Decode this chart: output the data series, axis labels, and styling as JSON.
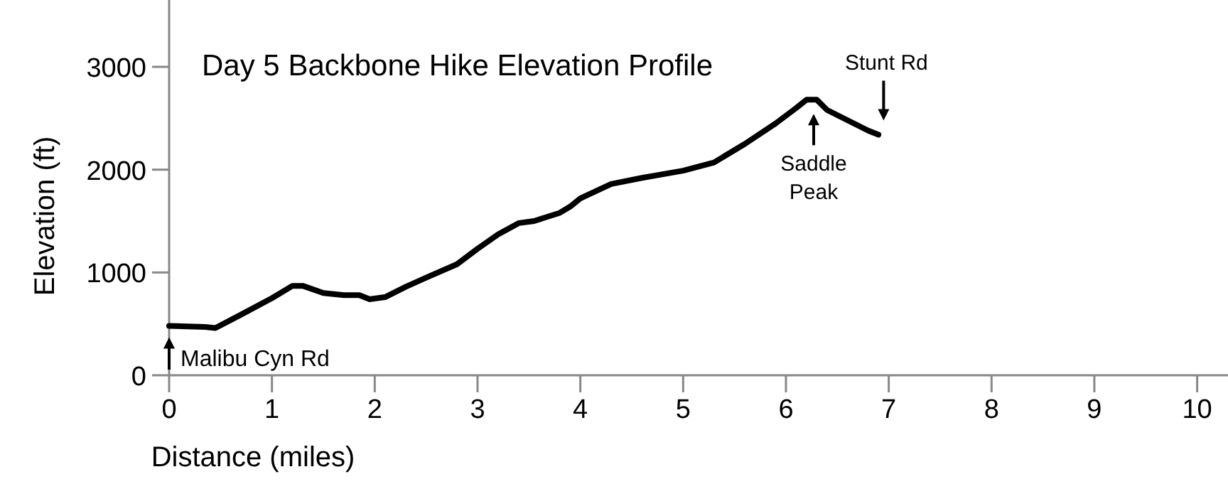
{
  "chart_data": {
    "type": "line",
    "title": "Day 5 Backbone Hike Elevation Profile",
    "xlabel": "Distance (miles)",
    "ylabel": "Elevation (ft)",
    "xlim": [
      0,
      10.3
    ],
    "ylim": [
      0,
      3650
    ],
    "xticks": [
      0,
      1,
      2,
      3,
      4,
      5,
      6,
      7,
      8,
      9,
      10
    ],
    "yticks": [
      0,
      1000,
      2000,
      3000
    ],
    "grid": false,
    "marker": "none",
    "line_style": "solid",
    "series": [
      {
        "color": "#000000",
        "x": [
          0,
          0.35,
          0.45,
          0.7,
          1.0,
          1.2,
          1.3,
          1.5,
          1.7,
          1.85,
          1.95,
          2.1,
          2.3,
          2.5,
          2.8,
          3.0,
          3.2,
          3.4,
          3.55,
          3.8,
          3.9,
          4.0,
          4.3,
          4.6,
          5.0,
          5.3,
          5.6,
          5.9,
          6.1,
          6.2,
          6.3,
          6.4,
          6.6,
          6.8,
          6.9
        ],
        "values": [
          480,
          470,
          460,
          590,
          750,
          870,
          870,
          800,
          780,
          780,
          740,
          760,
          860,
          950,
          1080,
          1230,
          1370,
          1480,
          1500,
          1580,
          1640,
          1720,
          1860,
          1920,
          1990,
          2070,
          2250,
          2450,
          2600,
          2680,
          2680,
          2580,
          2480,
          2380,
          2340
        ]
      }
    ],
    "annotations": [
      {
        "text": "Malibu Cyn Rd",
        "x": 0,
        "y": 480
      },
      {
        "text": "Saddle Peak",
        "x": 6.27,
        "y": 2680
      },
      {
        "text": "Stunt Rd",
        "x": 6.95,
        "y": 2340
      }
    ]
  }
}
